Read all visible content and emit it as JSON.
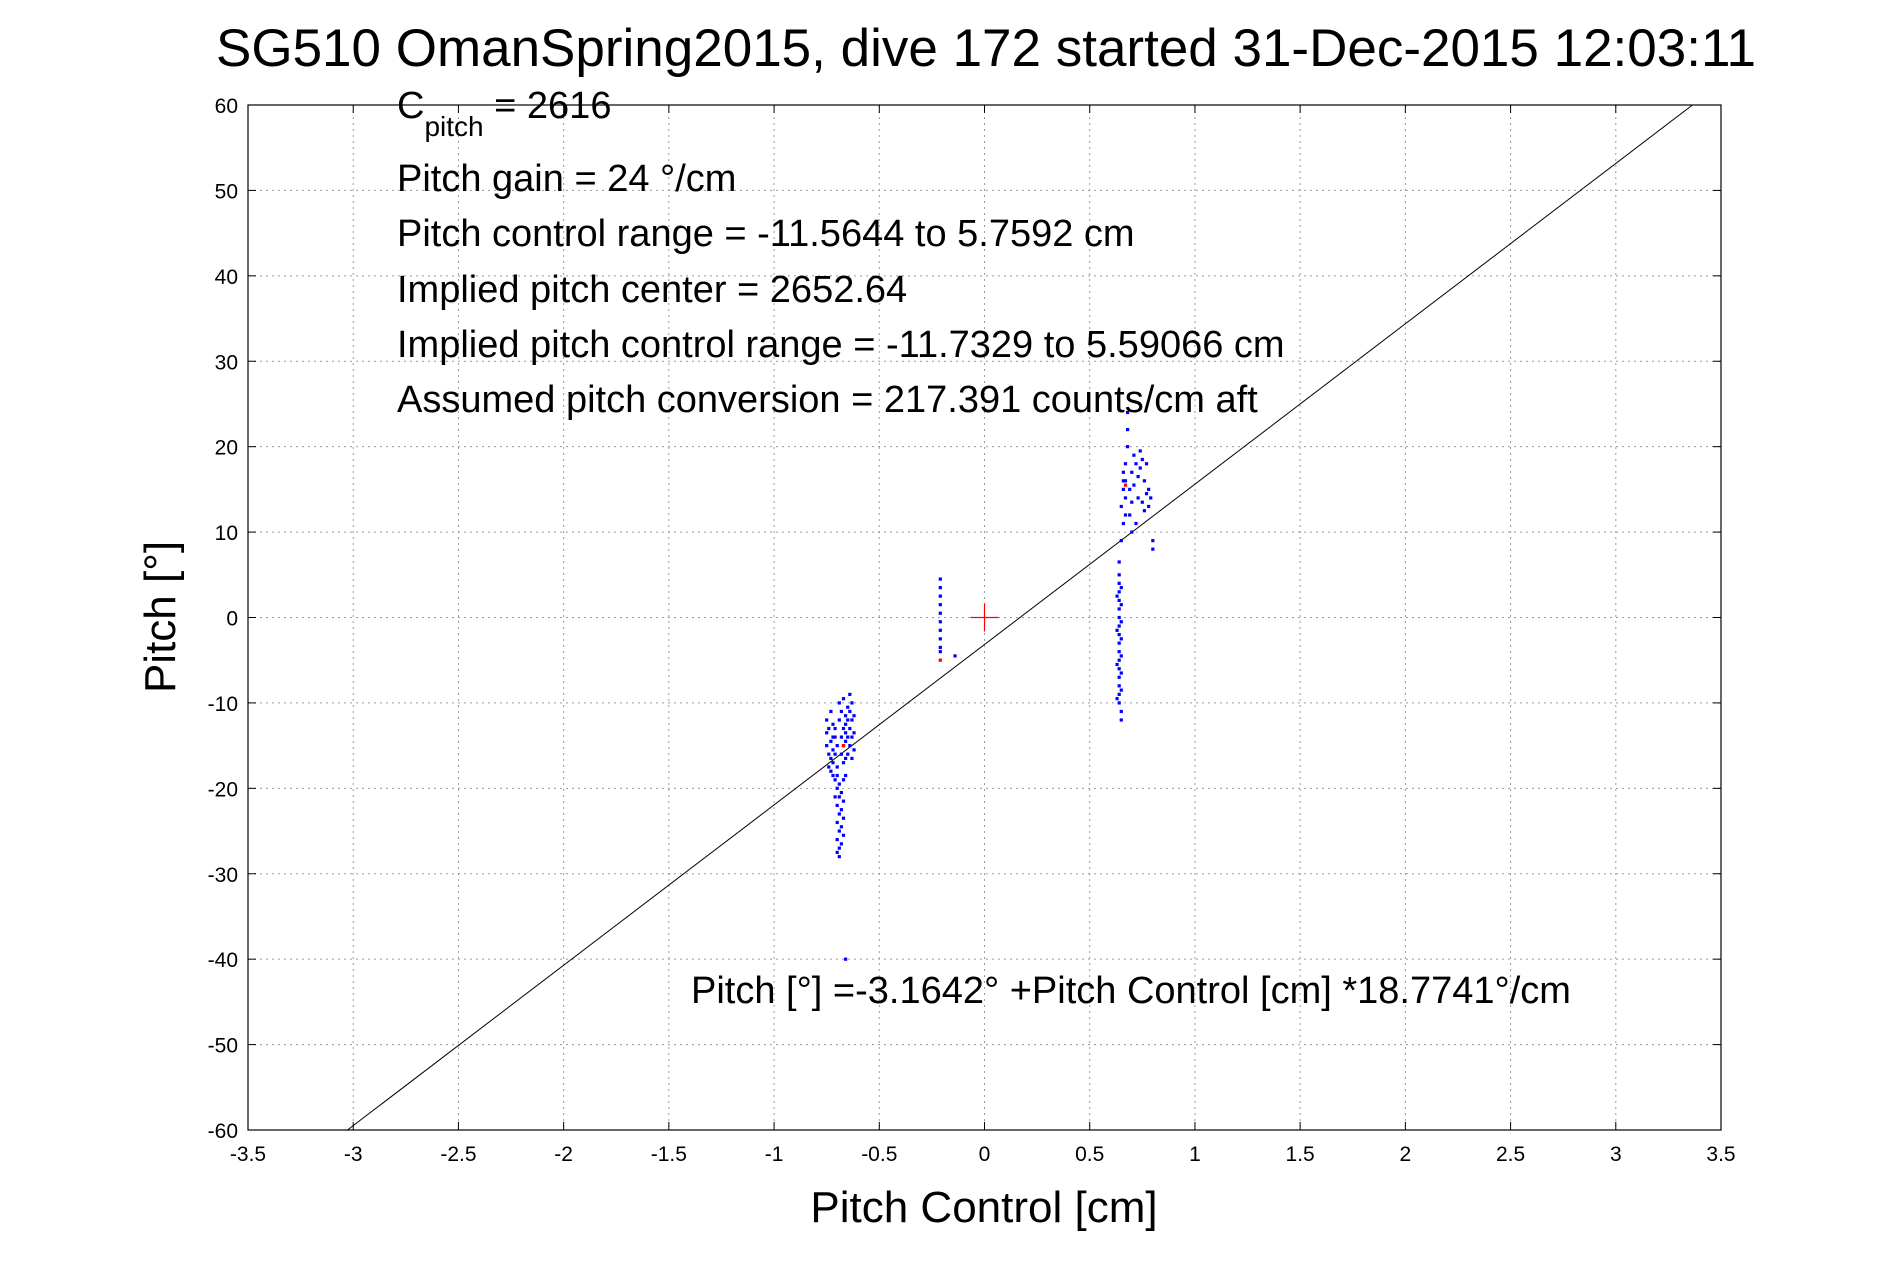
{
  "chart_data": {
    "type": "scatter",
    "title": "SG510 OmanSpring2015, dive 172 started 31-Dec-2015 12:03:11",
    "xlabel": "Pitch Control [cm]",
    "ylabel": "Pitch [°]",
    "xlim": [
      -3.5,
      3.5
    ],
    "ylim": [
      -60,
      60
    ],
    "xticks": [
      -3.5,
      -3,
      -2.5,
      -2,
      -1.5,
      -1,
      -0.5,
      0,
      0.5,
      1,
      1.5,
      2,
      2.5,
      3,
      3.5
    ],
    "xtick_labels": [
      "-3.5",
      "-3",
      "-2.5",
      "-2",
      "-1.5",
      "-1",
      "-0.5",
      "0",
      "0.5",
      "1",
      "1.5",
      "2",
      "2.5",
      "3",
      "3.5"
    ],
    "yticks": [
      -60,
      -50,
      -40,
      -30,
      -20,
      -10,
      0,
      10,
      20,
      30,
      40,
      50,
      60
    ],
    "ytick_labels": [
      "-60",
      "-50",
      "-40",
      "-30",
      "-20",
      "-10",
      "0",
      "10",
      "20",
      "30",
      "40",
      "50",
      "60"
    ],
    "grid": true,
    "annotations": {
      "cpitch_main": "C",
      "cpitch_sub": "pitch",
      "cpitch_value": " = 2616",
      "line2": "Pitch gain = 24 °/cm",
      "line3": "Pitch control range = -11.5644 to 5.7592 cm",
      "line4": "Implied pitch center = 2652.64",
      "line5": "Implied pitch control range = -11.7329 to 5.59066 cm",
      "line6": "Assumed pitch conversion = 217.391 counts/cm aft",
      "fit_equation": "Pitch [°] =-3.1642° +Pitch Control [cm] *18.7741°/cm"
    },
    "fit_line": {
      "intercept": -3.1642,
      "slope": 18.7741,
      "color": "#000000"
    },
    "center_marker": {
      "x": 0,
      "y": 0,
      "color": "#ff0000"
    },
    "series": [
      {
        "color": "#0000ff",
        "points": [
          [
            -0.75,
            -12.0
          ],
          [
            -0.75,
            -13.5
          ],
          [
            -0.75,
            -15.0
          ],
          [
            -0.74,
            -16.0
          ],
          [
            -0.74,
            -17.5
          ],
          [
            -0.74,
            -13.0
          ],
          [
            -0.73,
            -11.0
          ],
          [
            -0.73,
            -14.5
          ],
          [
            -0.73,
            -16.5
          ],
          [
            -0.73,
            -18.0
          ],
          [
            -0.72,
            -12.5
          ],
          [
            -0.72,
            -15.5
          ],
          [
            -0.72,
            -17.0
          ],
          [
            -0.72,
            -18.5
          ],
          [
            -0.71,
            -14.0
          ],
          [
            -0.71,
            -16.0
          ],
          [
            -0.71,
            -19.0
          ],
          [
            -0.71,
            -13.0
          ],
          [
            -0.7,
            -15.0
          ],
          [
            -0.7,
            -17.5
          ],
          [
            -0.7,
            -20.0
          ],
          [
            -0.7,
            -22.0
          ],
          [
            -0.7,
            -24.0
          ],
          [
            -0.7,
            -26.0
          ],
          [
            -0.7,
            -27.5
          ],
          [
            -0.69,
            -21.0
          ],
          [
            -0.69,
            -23.0
          ],
          [
            -0.69,
            -25.0
          ],
          [
            -0.69,
            -27.0
          ],
          [
            -0.69,
            -28.0
          ],
          [
            -0.69,
            -10.0
          ],
          [
            -0.69,
            -12.0
          ],
          [
            -0.68,
            -14.0
          ],
          [
            -0.68,
            -16.0
          ],
          [
            -0.68,
            -22.5
          ],
          [
            -0.68,
            -24.5
          ],
          [
            -0.68,
            -26.5
          ],
          [
            -0.68,
            -11.0
          ],
          [
            -0.67,
            -13.0
          ],
          [
            -0.67,
            -15.0
          ],
          [
            -0.67,
            -17.0
          ],
          [
            -0.67,
            -19.0
          ],
          [
            -0.67,
            -21.5
          ],
          [
            -0.67,
            -23.5
          ],
          [
            -0.67,
            -25.5
          ],
          [
            -0.67,
            -9.5
          ],
          [
            -0.66,
            -12.5
          ],
          [
            -0.66,
            -14.5
          ],
          [
            -0.66,
            -16.5
          ],
          [
            -0.66,
            -18.5
          ],
          [
            -0.66,
            -11.5
          ],
          [
            -0.66,
            -13.5
          ],
          [
            -0.65,
            -12.0
          ],
          [
            -0.65,
            -14.0
          ],
          [
            -0.65,
            -16.0
          ],
          [
            -0.65,
            -10.5
          ],
          [
            -0.64,
            -13.0
          ],
          [
            -0.64,
            -15.0
          ],
          [
            -0.64,
            -11.0
          ],
          [
            -0.64,
            -9.0
          ],
          [
            -0.63,
            -12.0
          ],
          [
            -0.63,
            -14.0
          ],
          [
            -0.63,
            -16.5
          ],
          [
            -0.63,
            -10.0
          ],
          [
            -0.62,
            -13.5
          ],
          [
            -0.62,
            -11.5
          ],
          [
            -0.62,
            -15.5
          ],
          [
            -0.7,
            -18.5
          ],
          [
            -0.71,
            -21.0
          ],
          [
            -0.72,
            -14.0
          ],
          [
            -0.69,
            -19.5
          ],
          [
            -0.68,
            -20.5
          ],
          [
            -0.66,
            -40.0
          ],
          [
            -0.21,
            4.5
          ],
          [
            -0.21,
            3.5
          ],
          [
            -0.21,
            2.5
          ],
          [
            -0.21,
            1.5
          ],
          [
            -0.21,
            0.5
          ],
          [
            -0.21,
            -0.5
          ],
          [
            -0.21,
            -1.5
          ],
          [
            -0.21,
            -2.5
          ],
          [
            -0.21,
            -3.5
          ],
          [
            -0.21,
            -4.0
          ],
          [
            -0.14,
            -4.5
          ],
          [
            0.64,
            5.0
          ],
          [
            0.64,
            4.0
          ],
          [
            0.64,
            3.0
          ],
          [
            0.64,
            2.0
          ],
          [
            0.64,
            1.0
          ],
          [
            0.64,
            0.0
          ],
          [
            0.64,
            -1.0
          ],
          [
            0.64,
            -2.0
          ],
          [
            0.64,
            -3.0
          ],
          [
            0.64,
            -4.0
          ],
          [
            0.64,
            -5.0
          ],
          [
            0.64,
            -6.0
          ],
          [
            0.64,
            -7.0
          ],
          [
            0.64,
            -8.0
          ],
          [
            0.64,
            -9.0
          ],
          [
            0.64,
            -10.0
          ],
          [
            0.65,
            -11.0
          ],
          [
            0.65,
            -12.0
          ],
          [
            0.65,
            3.5
          ],
          [
            0.65,
            1.5
          ],
          [
            0.65,
            -0.5
          ],
          [
            0.65,
            -2.5
          ],
          [
            0.65,
            -4.5
          ],
          [
            0.65,
            -6.5
          ],
          [
            0.65,
            -8.5
          ],
          [
            0.63,
            2.5
          ],
          [
            0.63,
            -1.5
          ],
          [
            0.63,
            -5.5
          ],
          [
            0.63,
            -9.5
          ],
          [
            0.64,
            6.5
          ],
          [
            0.65,
            9.0
          ],
          [
            0.66,
            11.0
          ],
          [
            0.65,
            13.0
          ],
          [
            0.66,
            15.0
          ],
          [
            0.66,
            17.0
          ],
          [
            0.67,
            14.0
          ],
          [
            0.67,
            16.0
          ],
          [
            0.67,
            18.0
          ],
          [
            0.68,
            22.0
          ],
          [
            0.68,
            24.0
          ],
          [
            0.68,
            20.0
          ],
          [
            0.69,
            15.0
          ],
          [
            0.69,
            12.0
          ],
          [
            0.7,
            17.0
          ],
          [
            0.7,
            13.5
          ],
          [
            0.71,
            19.0
          ],
          [
            0.71,
            15.5
          ],
          [
            0.72,
            11.0
          ],
          [
            0.72,
            18.0
          ],
          [
            0.73,
            16.5
          ],
          [
            0.73,
            14.0
          ],
          [
            0.74,
            19.5
          ],
          [
            0.74,
            17.5
          ],
          [
            0.75,
            18.5
          ],
          [
            0.75,
            13.5
          ],
          [
            0.76,
            12.5
          ],
          [
            0.76,
            16.0
          ],
          [
            0.77,
            14.5
          ],
          [
            0.77,
            18.0
          ],
          [
            0.78,
            13.0
          ],
          [
            0.78,
            15.0
          ],
          [
            0.79,
            14.0
          ],
          [
            0.8,
            9.0
          ],
          [
            0.8,
            8.0
          ],
          [
            0.66,
            16.0
          ],
          [
            0.67,
            12.0
          ],
          [
            0.7,
            10.0
          ]
        ]
      },
      {
        "color": "#ff0000",
        "points": [
          [
            -0.21,
            -5.0
          ],
          [
            0.67,
            15.5
          ],
          [
            -0.67,
            -15.0
          ]
        ]
      }
    ]
  }
}
